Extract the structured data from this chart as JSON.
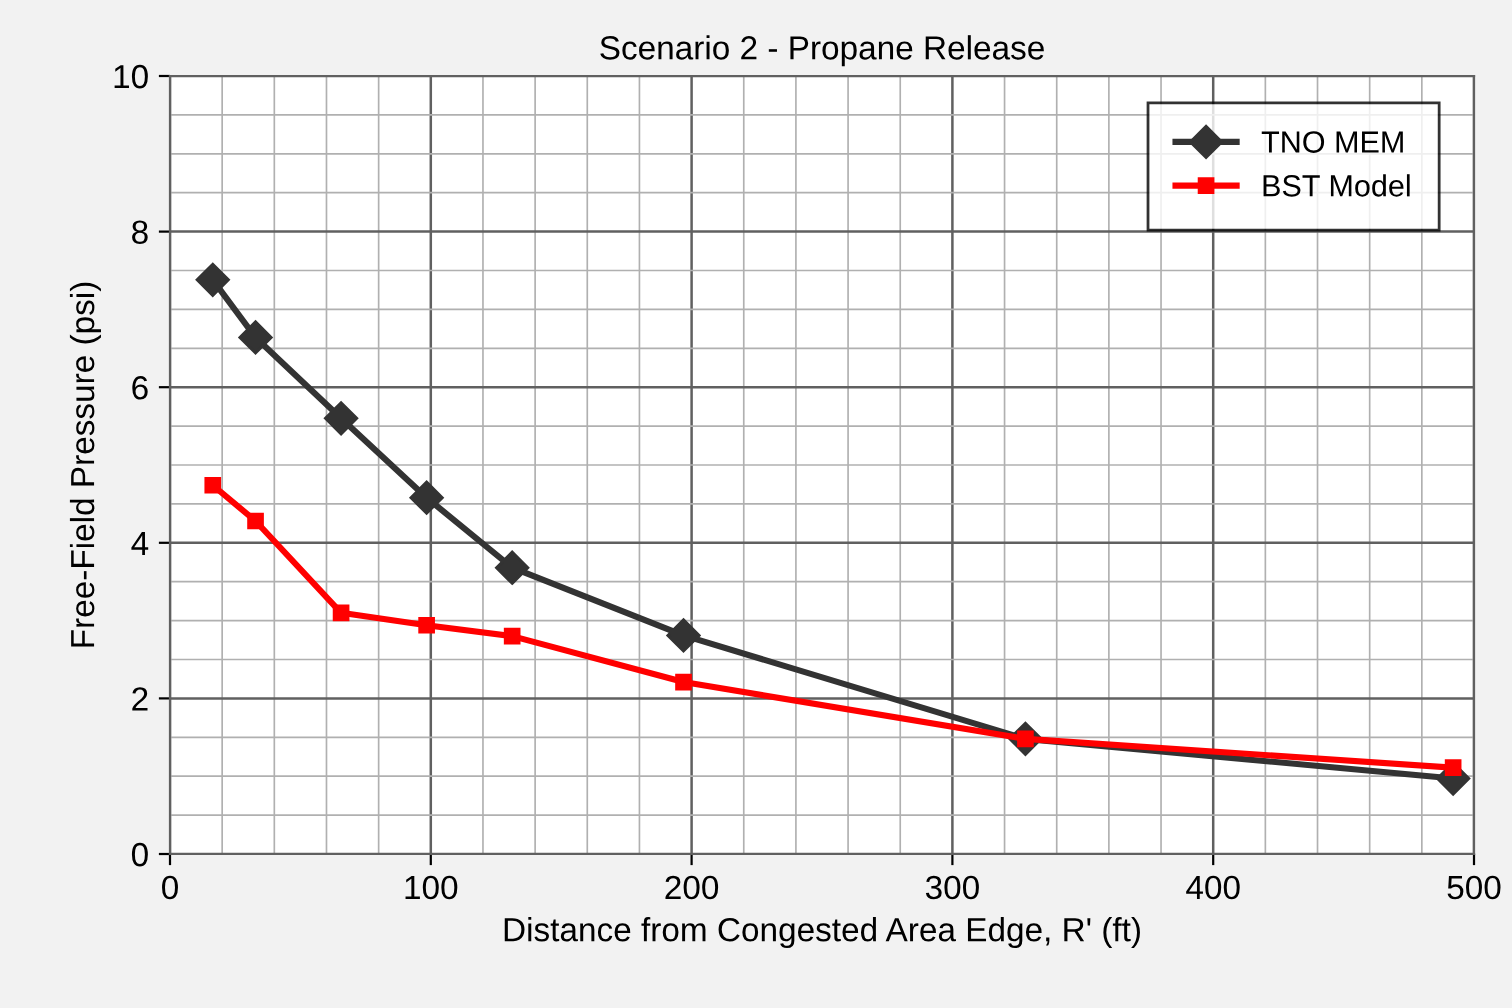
{
  "chart_data": {
    "type": "line",
    "title": "Scenario 2 - Propane Release",
    "xlabel": "Distance from Congested Area Edge, R' (ft)",
    "ylabel": "Free-Field Pressure (psi)",
    "x": [
      16.4,
      32.8,
      65.6,
      98.4,
      131.2,
      196.9,
      328,
      492
    ],
    "series": [
      {
        "name": "TNO MEM",
        "color": "#333333",
        "marker": "diamond",
        "values": [
          7.38,
          6.64,
          5.6,
          4.58,
          3.68,
          2.81,
          1.48,
          0.97
        ]
      },
      {
        "name": "BST Model",
        "color": "#ff0000",
        "marker": "square",
        "values": [
          4.74,
          4.28,
          3.1,
          2.94,
          2.8,
          2.21,
          1.48,
          1.11
        ]
      }
    ],
    "xlim": [
      0,
      500
    ],
    "xticks": [
      0,
      100,
      200,
      300,
      400,
      500
    ],
    "ylim": [
      0,
      10
    ],
    "yticks": [
      0,
      2,
      4,
      6,
      8,
      10
    ],
    "grid": true,
    "legend": "top right",
    "line_style": "solid"
  }
}
